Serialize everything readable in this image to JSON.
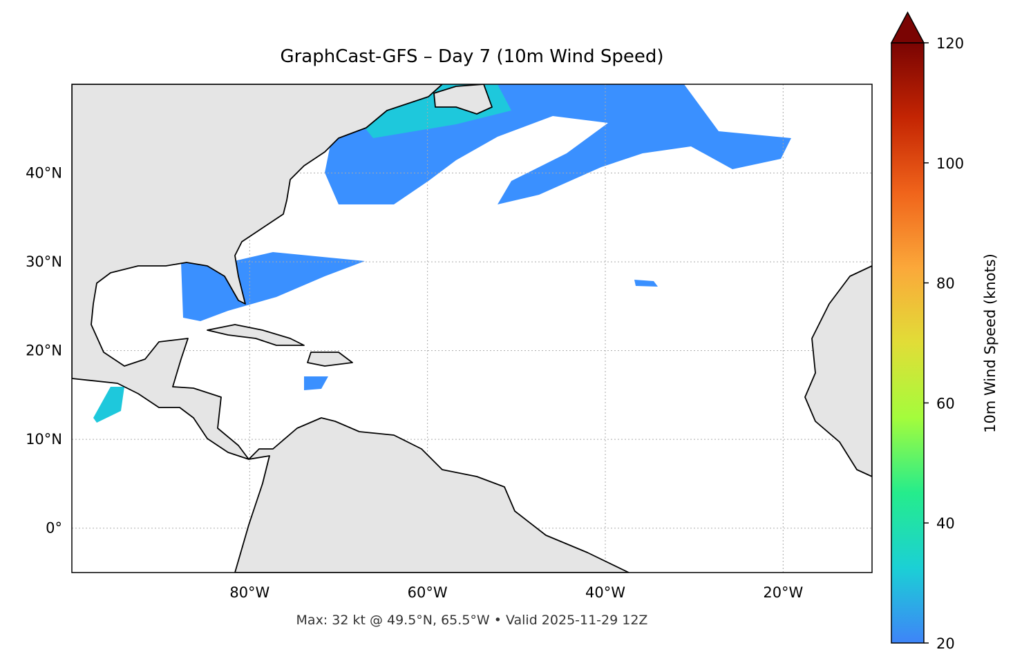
{
  "chart_data": {
    "type": "map",
    "title": "GraphCast-GFS – Day 7 (10m Wind Speed)",
    "footer": "Max: 32 kt @ 49.5°N, 65.5°W • Valid 2025-11-29 12Z",
    "xlim": [
      -100,
      -10
    ],
    "ylim": [
      -5,
      50
    ],
    "xticks": [
      {
        "value": -80,
        "label": "80°W"
      },
      {
        "value": -60,
        "label": "60°W"
      },
      {
        "value": -40,
        "label": "40°W"
      },
      {
        "value": -20,
        "label": "20°W"
      }
    ],
    "yticks": [
      {
        "value": 0,
        "label": "0°"
      },
      {
        "value": 10,
        "label": "10°N"
      },
      {
        "value": 20,
        "label": "20°N"
      },
      {
        "value": 30,
        "label": "30°N"
      },
      {
        "value": 40,
        "label": "40°N"
      }
    ],
    "grid": true,
    "colorbar": {
      "label": "10m Wind Speed (knots)",
      "lim": [
        20,
        120
      ],
      "ticks": [
        20,
        40,
        60,
        80,
        100,
        120
      ],
      "extend": "max",
      "colors": [
        "#3e84f8",
        "#1bd0d5",
        "#25ec8c",
        "#a4fc3c",
        "#e1dd37",
        "#fba83a",
        "#f0641b",
        "#c42503",
        "#7a0403"
      ]
    }
  }
}
